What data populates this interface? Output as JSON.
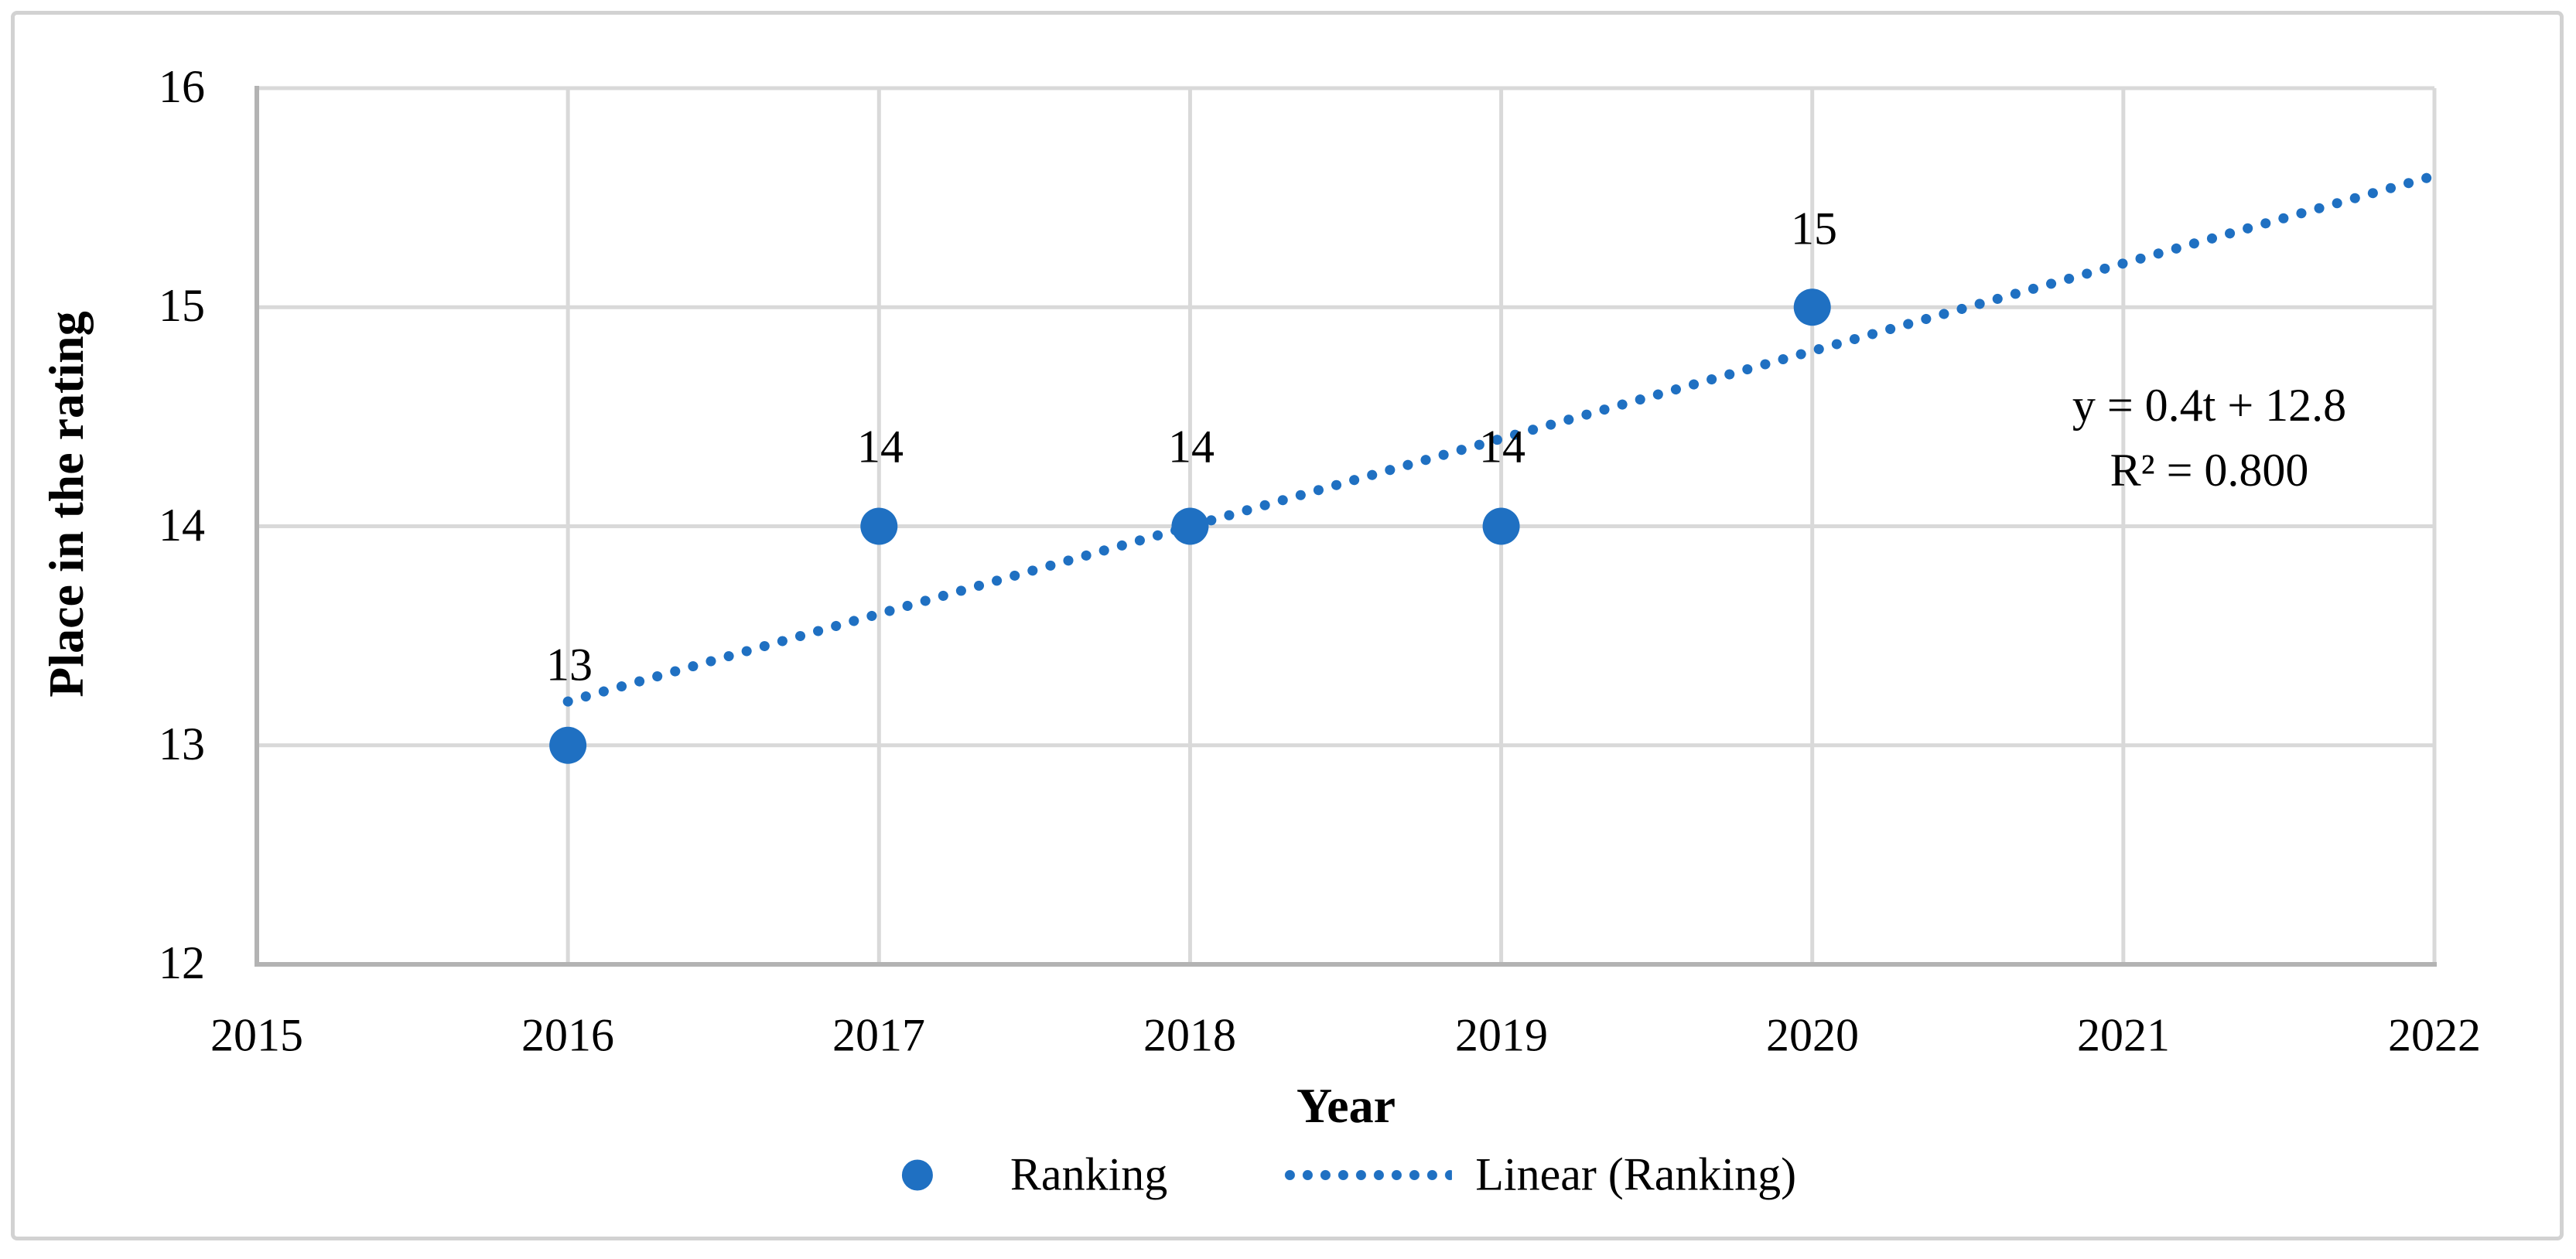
{
  "chart_data": {
    "type": "scatter",
    "title": "",
    "xlabel": "Year",
    "ylabel": "Place in the rating",
    "x": [
      2016,
      2017,
      2018,
      2019,
      2020
    ],
    "series": [
      {
        "name": "Ranking",
        "values": [
          13,
          14,
          14,
          14,
          15
        ]
      }
    ],
    "point_labels": [
      "13",
      "14",
      "14",
      "14",
      "15"
    ],
    "x_tick_labels": [
      "2015",
      "2016",
      "2017",
      "2018",
      "2019",
      "2020",
      "2021",
      "2022"
    ],
    "y_tick_labels": [
      "16",
      "15",
      "14",
      "13",
      "12"
    ],
    "xlim": [
      2015,
      2022
    ],
    "ylim": [
      12,
      16
    ],
    "grid": true,
    "trendline": {
      "name": "Linear (Ranking)",
      "style": "dotted",
      "equation": "y = 0.4t + 12.8",
      "r_squared": "R² = 0.800",
      "points": [
        [
          2016,
          13.2
        ],
        [
          2022,
          15.6
        ]
      ]
    },
    "legend": {
      "position": "bottom-center",
      "entries": [
        "Ranking",
        "Linear (Ranking)"
      ]
    },
    "colors": {
      "accent_blue": "#1f70c2",
      "gridline": "#d9d9d9",
      "axis_line": "#b3b3b3",
      "border": "#d2d2d2",
      "text": "#000000"
    }
  }
}
